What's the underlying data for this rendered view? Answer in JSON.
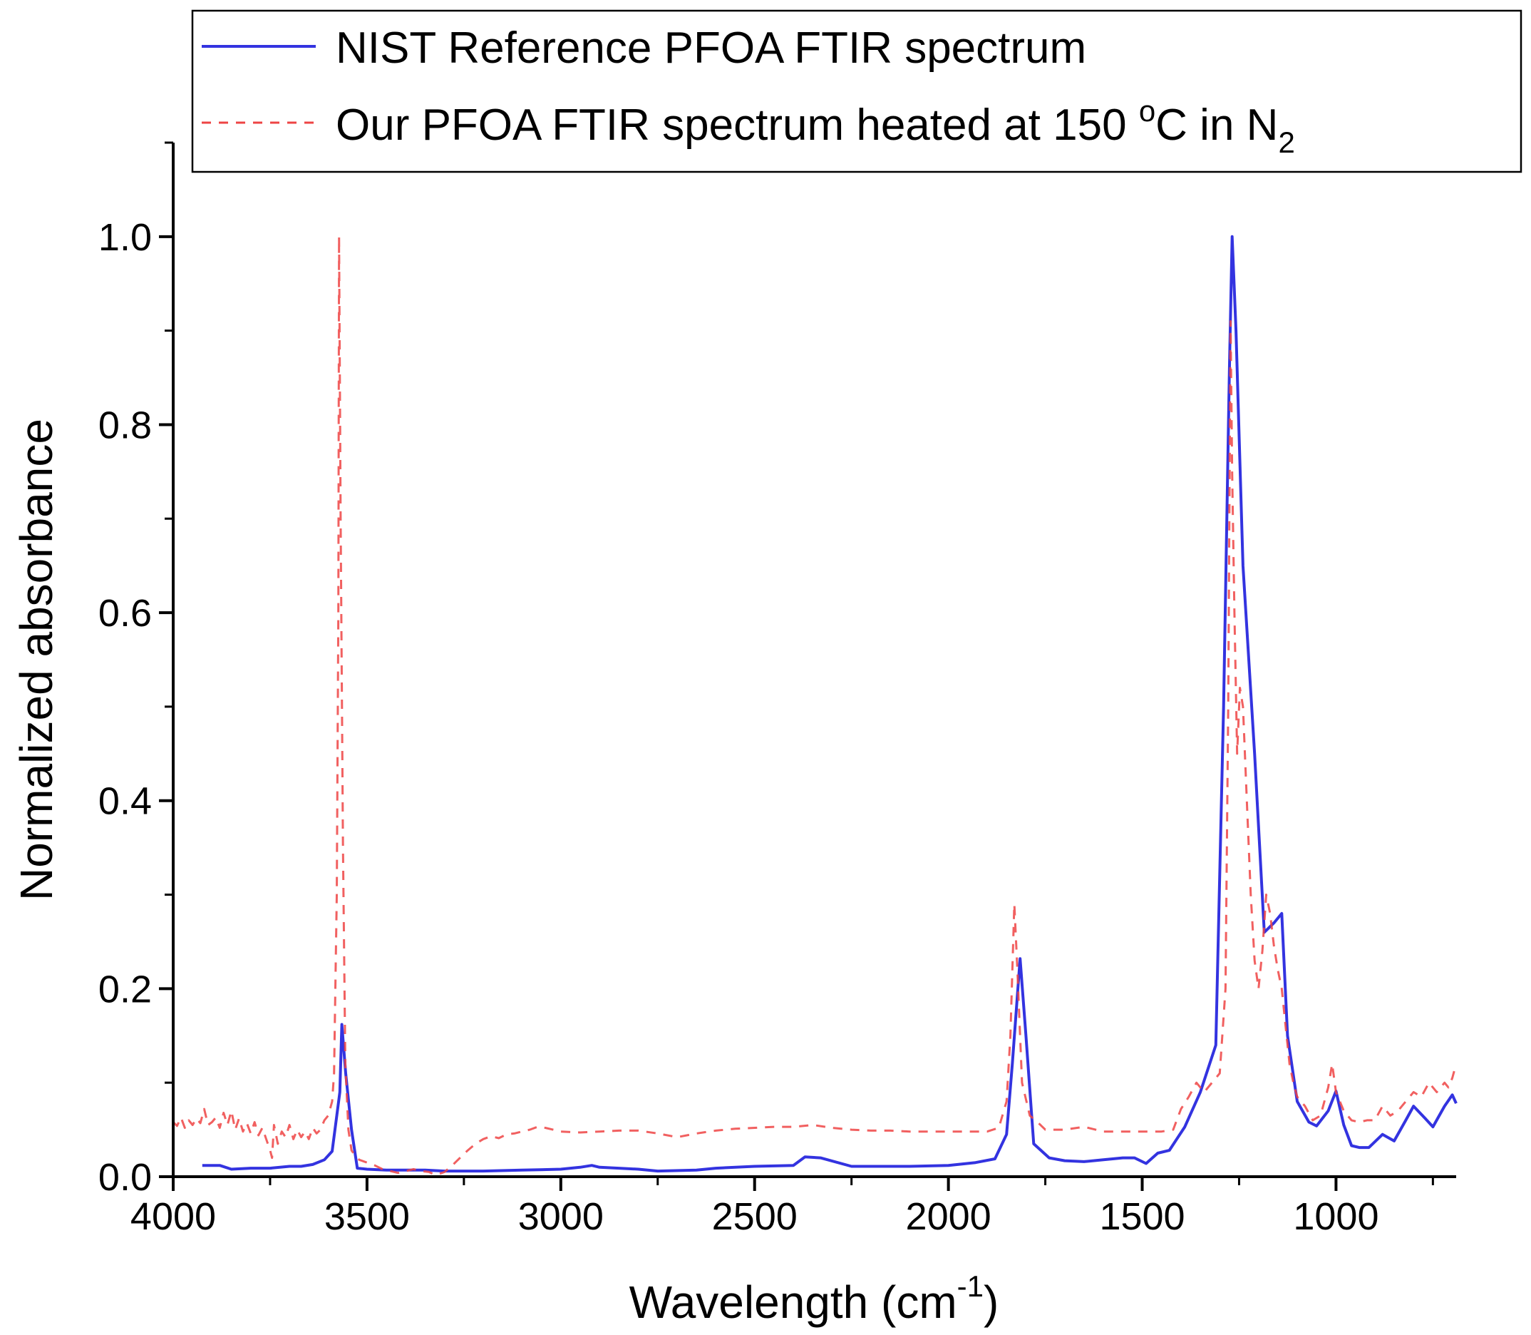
{
  "chart_data": {
    "type": "line",
    "title": "",
    "xlabel": {
      "main": "Wavelength (cm",
      "superscript": "-1",
      "close": ")"
    },
    "ylabel": "Normalized absorbance",
    "xlim": [
      4000,
      690
    ],
    "ylim": [
      0,
      1.1
    ],
    "x_reversed": true,
    "x_ticks": [
      4000,
      3500,
      3000,
      2500,
      2000,
      1500,
      1000
    ],
    "x_tick_labels": [
      "4000",
      "3500",
      "3000",
      "2500",
      "2000",
      "1500",
      "1000"
    ],
    "x_minor_ticks": [
      3750,
      3250,
      2750,
      2250,
      1750,
      1250,
      750
    ],
    "y_ticks": [
      0,
      0.2,
      0.4,
      0.6,
      0.8,
      1.0
    ],
    "y_tick_labels": [
      "0.0",
      "0.2",
      "0.4",
      "0.6",
      "0.8",
      "1.0"
    ],
    "y_minor_ticks": [
      0.1,
      0.3,
      0.5,
      0.7,
      0.9,
      1.1
    ],
    "grid": false,
    "legend": {
      "position": "top-right",
      "entries": [
        {
          "series": 0,
          "text": "NIST Reference PFOA FTIR spectrum"
        },
        {
          "series": 1,
          "text": "Our PFOA FTIR spectrum heated at 150 ",
          "sup": "o",
          "text2": "C in N",
          "sub": "2"
        }
      ]
    },
    "series": [
      {
        "name": "NIST Reference PFOA FTIR spectrum",
        "color": "#3333e0",
        "style": "solid",
        "points": [
          [
            3925,
            0.012
          ],
          [
            3880,
            0.012
          ],
          [
            3850,
            0.008
          ],
          [
            3800,
            0.009
          ],
          [
            3750,
            0.009
          ],
          [
            3700,
            0.011
          ],
          [
            3670,
            0.011
          ],
          [
            3640,
            0.013
          ],
          [
            3610,
            0.018
          ],
          [
            3590,
            0.027
          ],
          [
            3570,
            0.09
          ],
          [
            3565,
            0.162
          ],
          [
            3555,
            0.11
          ],
          [
            3540,
            0.05
          ],
          [
            3525,
            0.009
          ],
          [
            3500,
            0.008
          ],
          [
            3450,
            0.007
          ],
          [
            3350,
            0.007
          ],
          [
            3300,
            0.006
          ],
          [
            3200,
            0.006
          ],
          [
            3100,
            0.007
          ],
          [
            3000,
            0.008
          ],
          [
            2950,
            0.01
          ],
          [
            2920,
            0.012
          ],
          [
            2900,
            0.01
          ],
          [
            2850,
            0.009
          ],
          [
            2800,
            0.008
          ],
          [
            2750,
            0.006
          ],
          [
            2650,
            0.007
          ],
          [
            2600,
            0.009
          ],
          [
            2500,
            0.011
          ],
          [
            2400,
            0.012
          ],
          [
            2370,
            0.021
          ],
          [
            2330,
            0.02
          ],
          [
            2250,
            0.011
          ],
          [
            2100,
            0.011
          ],
          [
            2000,
            0.012
          ],
          [
            1930,
            0.015
          ],
          [
            1880,
            0.019
          ],
          [
            1850,
            0.045
          ],
          [
            1835,
            0.12
          ],
          [
            1815,
            0.232
          ],
          [
            1800,
            0.15
          ],
          [
            1780,
            0.035
          ],
          [
            1740,
            0.02
          ],
          [
            1700,
            0.017
          ],
          [
            1650,
            0.016
          ],
          [
            1600,
            0.018
          ],
          [
            1550,
            0.02
          ],
          [
            1520,
            0.02
          ],
          [
            1490,
            0.014
          ],
          [
            1460,
            0.025
          ],
          [
            1430,
            0.028
          ],
          [
            1390,
            0.053
          ],
          [
            1350,
            0.09
          ],
          [
            1310,
            0.14
          ],
          [
            1290,
            0.5
          ],
          [
            1275,
            0.86
          ],
          [
            1268,
            1.0
          ],
          [
            1258,
            0.9
          ],
          [
            1240,
            0.65
          ],
          [
            1210,
            0.45
          ],
          [
            1185,
            0.26
          ],
          [
            1160,
            0.27
          ],
          [
            1140,
            0.28
          ],
          [
            1125,
            0.15
          ],
          [
            1100,
            0.08
          ],
          [
            1070,
            0.058
          ],
          [
            1050,
            0.054
          ],
          [
            1020,
            0.07
          ],
          [
            1000,
            0.091
          ],
          [
            980,
            0.055
          ],
          [
            960,
            0.033
          ],
          [
            940,
            0.031
          ],
          [
            915,
            0.031
          ],
          [
            880,
            0.045
          ],
          [
            850,
            0.038
          ],
          [
            820,
            0.06
          ],
          [
            800,
            0.075
          ],
          [
            770,
            0.062
          ],
          [
            750,
            0.053
          ],
          [
            720,
            0.075
          ],
          [
            700,
            0.087
          ],
          [
            690,
            0.078
          ]
        ]
      },
      {
        "name": "Our PFOA FTIR spectrum heated at 150 oC in N2",
        "color": "#ee4444",
        "style": "dashed",
        "points": [
          [
            4000,
            0.058
          ],
          [
            3990,
            0.054
          ],
          [
            3980,
            0.063
          ],
          [
            3970,
            0.052
          ],
          [
            3960,
            0.06
          ],
          [
            3950,
            0.055
          ],
          [
            3940,
            0.062
          ],
          [
            3930,
            0.057
          ],
          [
            3920,
            0.072
          ],
          [
            3910,
            0.055
          ],
          [
            3900,
            0.058
          ],
          [
            3890,
            0.063
          ],
          [
            3880,
            0.052
          ],
          [
            3870,
            0.068
          ],
          [
            3860,
            0.055
          ],
          [
            3850,
            0.07
          ],
          [
            3840,
            0.05
          ],
          [
            3830,
            0.062
          ],
          [
            3820,
            0.048
          ],
          [
            3810,
            0.057
          ],
          [
            3800,
            0.046
          ],
          [
            3790,
            0.058
          ],
          [
            3780,
            0.044
          ],
          [
            3770,
            0.052
          ],
          [
            3760,
            0.04
          ],
          [
            3750,
            0.028
          ],
          [
            3745,
            0.02
          ],
          [
            3740,
            0.055
          ],
          [
            3730,
            0.035
          ],
          [
            3720,
            0.048
          ],
          [
            3710,
            0.042
          ],
          [
            3700,
            0.055
          ],
          [
            3690,
            0.04
          ],
          [
            3680,
            0.05
          ],
          [
            3670,
            0.042
          ],
          [
            3660,
            0.048
          ],
          [
            3650,
            0.04
          ],
          [
            3640,
            0.052
          ],
          [
            3630,
            0.046
          ],
          [
            3620,
            0.05
          ],
          [
            3610,
            0.06
          ],
          [
            3600,
            0.065
          ],
          [
            3590,
            0.08
          ],
          [
            3585,
            0.11
          ],
          [
            3578,
            0.3
          ],
          [
            3574,
            0.6
          ],
          [
            3572,
            1.0
          ],
          [
            3568,
            0.7
          ],
          [
            3562,
            0.35
          ],
          [
            3556,
            0.12
          ],
          [
            3548,
            0.05
          ],
          [
            3540,
            0.028
          ],
          [
            3530,
            0.022
          ],
          [
            3520,
            0.018
          ],
          [
            3500,
            0.015
          ],
          [
            3480,
            0.012
          ],
          [
            3460,
            0.008
          ],
          [
            3440,
            0.006
          ],
          [
            3420,
            0.004
          ],
          [
            3400,
            0.006
          ],
          [
            3380,
            0.008
          ],
          [
            3360,
            0.006
          ],
          [
            3340,
            0.005
          ],
          [
            3330,
            0.003
          ],
          [
            3320,
            0.002
          ],
          [
            3300,
            0.005
          ],
          [
            3280,
            0.012
          ],
          [
            3260,
            0.02
          ],
          [
            3240,
            0.028
          ],
          [
            3220,
            0.035
          ],
          [
            3200,
            0.04
          ],
          [
            3180,
            0.043
          ],
          [
            3160,
            0.041
          ],
          [
            3140,
            0.045
          ],
          [
            3120,
            0.046
          ],
          [
            3100,
            0.048
          ],
          [
            3080,
            0.05
          ],
          [
            3060,
            0.053
          ],
          [
            3040,
            0.052
          ],
          [
            3020,
            0.05
          ],
          [
            3000,
            0.048
          ],
          [
            2950,
            0.047
          ],
          [
            2900,
            0.048
          ],
          [
            2850,
            0.049
          ],
          [
            2800,
            0.049
          ],
          [
            2750,
            0.046
          ],
          [
            2700,
            0.042
          ],
          [
            2650,
            0.046
          ],
          [
            2600,
            0.049
          ],
          [
            2550,
            0.051
          ],
          [
            2500,
            0.052
          ],
          [
            2450,
            0.053
          ],
          [
            2400,
            0.053
          ],
          [
            2350,
            0.055
          ],
          [
            2300,
            0.052
          ],
          [
            2250,
            0.05
          ],
          [
            2200,
            0.049
          ],
          [
            2150,
            0.049
          ],
          [
            2100,
            0.048
          ],
          [
            2050,
            0.048
          ],
          [
            2000,
            0.048
          ],
          [
            1950,
            0.048
          ],
          [
            1900,
            0.048
          ],
          [
            1870,
            0.052
          ],
          [
            1850,
            0.08
          ],
          [
            1840,
            0.15
          ],
          [
            1830,
            0.29
          ],
          [
            1822,
            0.22
          ],
          [
            1810,
            0.1
          ],
          [
            1790,
            0.065
          ],
          [
            1770,
            0.058
          ],
          [
            1750,
            0.05
          ],
          [
            1700,
            0.05
          ],
          [
            1650,
            0.053
          ],
          [
            1600,
            0.048
          ],
          [
            1550,
            0.048
          ],
          [
            1500,
            0.048
          ],
          [
            1450,
            0.048
          ],
          [
            1420,
            0.05
          ],
          [
            1400,
            0.072
          ],
          [
            1380,
            0.085
          ],
          [
            1360,
            0.1
          ],
          [
            1340,
            0.09
          ],
          [
            1320,
            0.1
          ],
          [
            1300,
            0.11
          ],
          [
            1285,
            0.2
          ],
          [
            1278,
            0.5
          ],
          [
            1272,
            0.91
          ],
          [
            1268,
            0.75
          ],
          [
            1262,
            0.6
          ],
          [
            1255,
            0.45
          ],
          [
            1248,
            0.52
          ],
          [
            1240,
            0.5
          ],
          [
            1230,
            0.4
          ],
          [
            1220,
            0.3
          ],
          [
            1210,
            0.23
          ],
          [
            1200,
            0.2
          ],
          [
            1190,
            0.24
          ],
          [
            1180,
            0.3
          ],
          [
            1170,
            0.28
          ],
          [
            1160,
            0.245
          ],
          [
            1150,
            0.22
          ],
          [
            1140,
            0.2
          ],
          [
            1130,
            0.16
          ],
          [
            1120,
            0.12
          ],
          [
            1110,
            0.1
          ],
          [
            1100,
            0.085
          ],
          [
            1080,
            0.075
          ],
          [
            1060,
            0.06
          ],
          [
            1040,
            0.065
          ],
          [
            1020,
            0.095
          ],
          [
            1010,
            0.12
          ],
          [
            1000,
            0.09
          ],
          [
            980,
            0.07
          ],
          [
            960,
            0.06
          ],
          [
            940,
            0.058
          ],
          [
            920,
            0.06
          ],
          [
            900,
            0.06
          ],
          [
            880,
            0.075
          ],
          [
            860,
            0.065
          ],
          [
            840,
            0.07
          ],
          [
            820,
            0.08
          ],
          [
            800,
            0.09
          ],
          [
            780,
            0.085
          ],
          [
            760,
            0.1
          ],
          [
            740,
            0.09
          ],
          [
            720,
            0.1
          ],
          [
            710,
            0.095
          ],
          [
            700,
            0.105
          ],
          [
            690,
            0.12
          ]
        ]
      }
    ]
  }
}
